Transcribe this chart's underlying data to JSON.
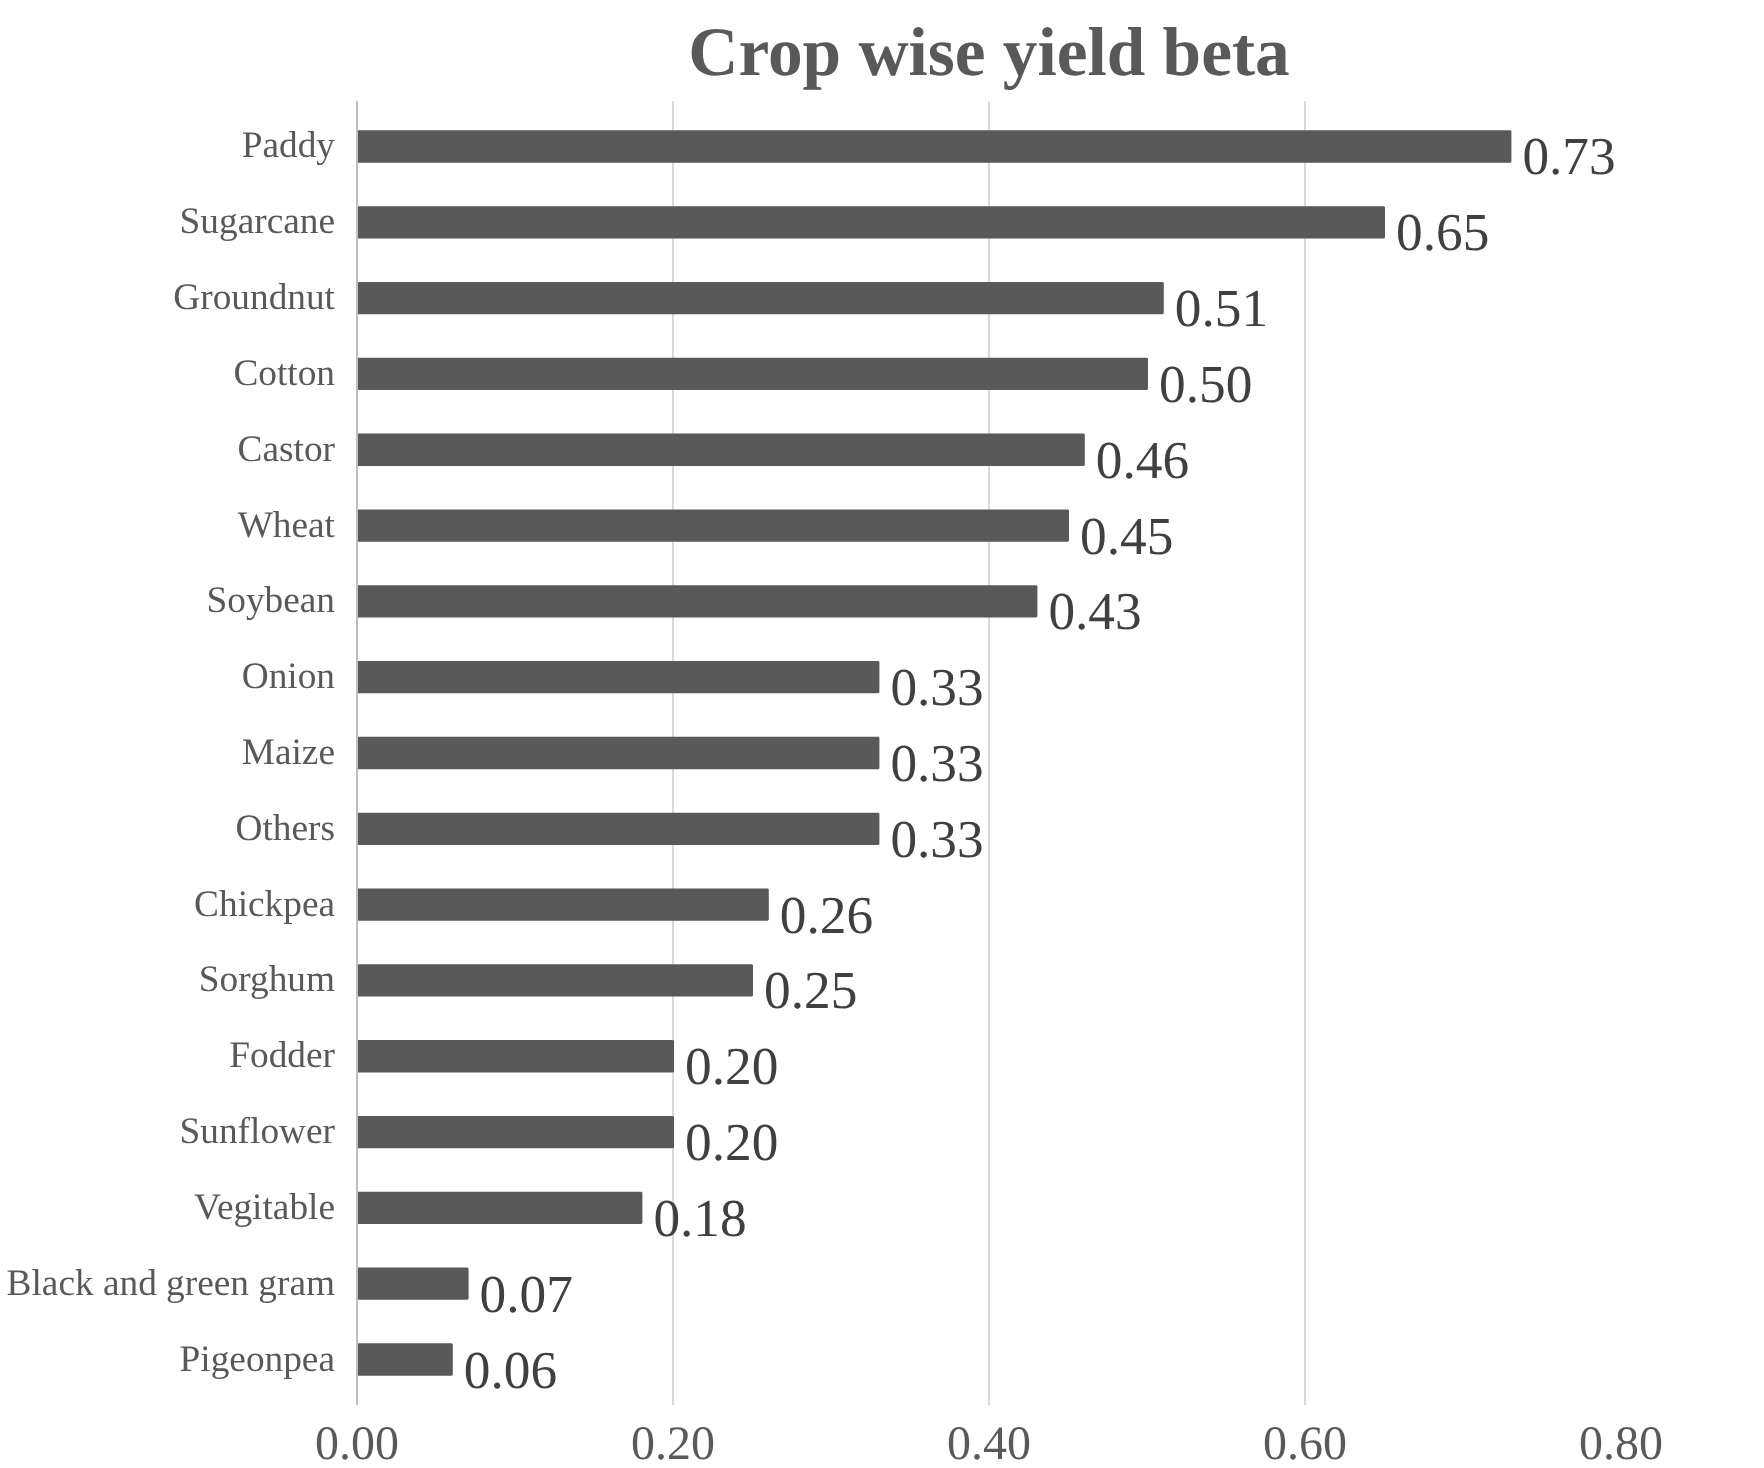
{
  "chart_data": {
    "type": "bar",
    "orientation": "horizontal",
    "title": "Crop wise yield beta",
    "categories": [
      "Paddy",
      "Sugarcane",
      "Groundnut",
      "Cotton",
      "Castor",
      "Wheat",
      "Soybean",
      "Onion",
      "Maize",
      "Others",
      "Chickpea",
      "Sorghum",
      "Fodder",
      "Sunflower",
      "Vegitable",
      "Black and green gram",
      "Pigeonpea"
    ],
    "values": [
      0.73,
      0.65,
      0.51,
      0.5,
      0.46,
      0.45,
      0.43,
      0.33,
      0.33,
      0.33,
      0.26,
      0.25,
      0.2,
      0.2,
      0.18,
      0.07,
      0.06
    ],
    "value_labels": [
      "0.73",
      "0.65",
      "0.51",
      "0.50",
      "0.46",
      "0.45",
      "0.43",
      "0.33",
      "0.33",
      "0.33",
      "0.26",
      "0.25",
      "0.20",
      "0.20",
      "0.18",
      "0.07",
      "0.06"
    ],
    "color": "#595959",
    "xlim": [
      0,
      0.8
    ],
    "xticks": [
      {
        "value": 0,
        "label": "0.00"
      },
      {
        "value": 0.2,
        "label": "0.20"
      },
      {
        "value": 0.4,
        "label": "0.40"
      },
      {
        "value": 0.6,
        "label": "0.60"
      },
      {
        "value": 0.8,
        "label": "0.80"
      }
    ],
    "grid": "x"
  }
}
